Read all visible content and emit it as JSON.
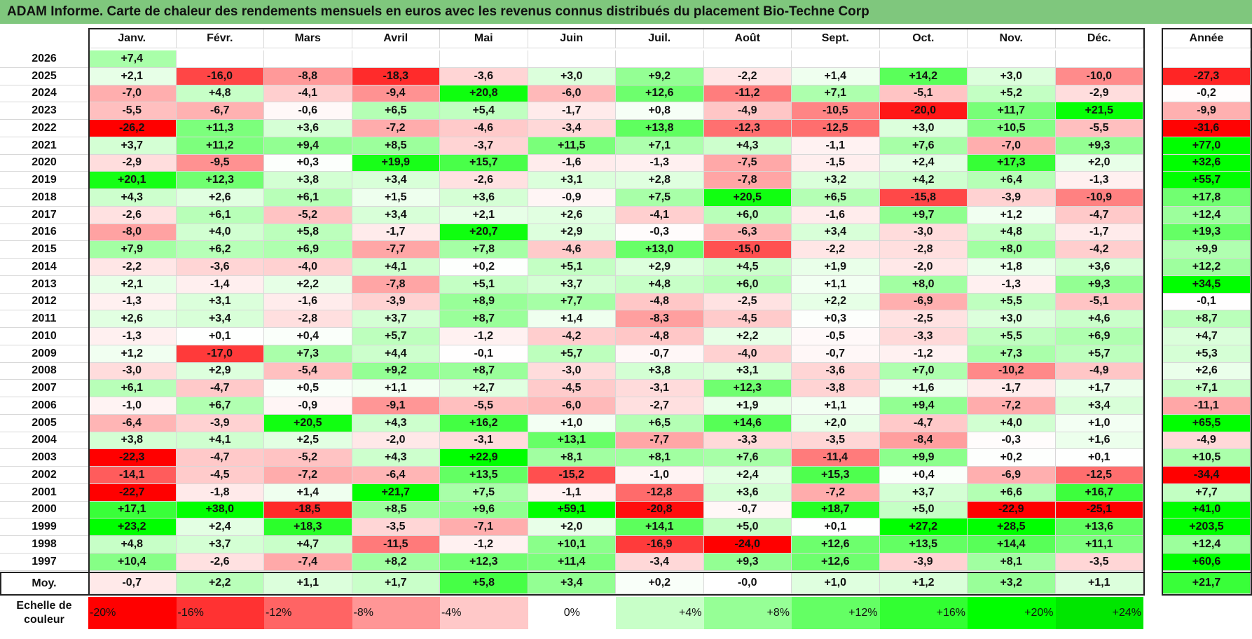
{
  "title": "ADAM Informe. Carte de chaleur des rendements mensuels en euros avec les revenus connus distribués du placement Bio-Techne Corp",
  "chart_data": {
    "type": "heatmap",
    "months": [
      "Janv.",
      "Févr.",
      "Mars",
      "Avril",
      "Mai",
      "Juin",
      "Juil.",
      "Août",
      "Sept.",
      "Oct.",
      "Nov.",
      "Déc."
    ],
    "annual_label": "Année",
    "rows": [
      {
        "year": "2026",
        "values": [
          "+7,4",
          "",
          "",
          "",
          "",
          "",
          "",
          "",
          "",
          "",
          "",
          ""
        ],
        "annual": ""
      },
      {
        "year": "2025",
        "values": [
          "+2,1",
          "-16,0",
          "-8,8",
          "-18,3",
          "-3,6",
          "+3,0",
          "+9,2",
          "-2,2",
          "+1,4",
          "+14,2",
          "+3,0",
          "-10,0"
        ],
        "annual": "-27,3"
      },
      {
        "year": "2024",
        "values": [
          "-7,0",
          "+4,8",
          "-4,1",
          "-9,4",
          "+20,8",
          "-6,0",
          "+12,6",
          "-11,2",
          "+7,1",
          "-5,1",
          "+5,2",
          "-2,9"
        ],
        "annual": "-0,2"
      },
      {
        "year": "2023",
        "values": [
          "-5,5",
          "-6,7",
          "-0,6",
          "+6,5",
          "+5,4",
          "-1,7",
          "+0,8",
          "-4,9",
          "-10,5",
          "-20,0",
          "+11,7",
          "+21,5"
        ],
        "annual": "-9,9"
      },
      {
        "year": "2022",
        "values": [
          "-26,2",
          "+11,3",
          "+3,6",
          "-7,2",
          "-4,6",
          "-3,4",
          "+13,8",
          "-12,3",
          "-12,5",
          "+3,0",
          "+10,5",
          "-5,5"
        ],
        "annual": "-31,6"
      },
      {
        "year": "2021",
        "values": [
          "+3,7",
          "+11,2",
          "+9,4",
          "+8,5",
          "-3,7",
          "+11,5",
          "+7,1",
          "+4,3",
          "-1,1",
          "+7,6",
          "-7,0",
          "+9,3"
        ],
        "annual": "+77,0"
      },
      {
        "year": "2020",
        "values": [
          "-2,9",
          "-9,5",
          "+0,3",
          "+19,9",
          "+15,7",
          "-1,6",
          "-1,3",
          "-7,5",
          "-1,5",
          "+2,4",
          "+17,3",
          "+2,0"
        ],
        "annual": "+32,6"
      },
      {
        "year": "2019",
        "values": [
          "+20,1",
          "+12,3",
          "+3,8",
          "+3,4",
          "-2,6",
          "+3,1",
          "+2,8",
          "-7,8",
          "+3,2",
          "+4,2",
          "+6,4",
          "-1,3"
        ],
        "annual": "+55,7"
      },
      {
        "year": "2018",
        "values": [
          "+4,3",
          "+2,6",
          "+6,1",
          "+1,5",
          "+3,6",
          "-0,9",
          "+7,5",
          "+20,5",
          "+6,5",
          "-15,8",
          "-3,9",
          "-10,9"
        ],
        "annual": "+17,8"
      },
      {
        "year": "2017",
        "values": [
          "-2,6",
          "+6,1",
          "-5,2",
          "+3,4",
          "+2,1",
          "+2,6",
          "-4,1",
          "+6,0",
          "-1,6",
          "+9,7",
          "+1,2",
          "-4,7"
        ],
        "annual": "+12,4"
      },
      {
        "year": "2016",
        "values": [
          "-8,0",
          "+4,0",
          "+5,8",
          "-1,7",
          "+20,7",
          "+2,9",
          "-0,3",
          "-6,3",
          "+3,4",
          "-3,0",
          "+4,8",
          "-1,7"
        ],
        "annual": "+19,3"
      },
      {
        "year": "2015",
        "values": [
          "+7,9",
          "+6,2",
          "+6,9",
          "-7,7",
          "+7,8",
          "-4,6",
          "+13,0",
          "-15,0",
          "-2,2",
          "-2,8",
          "+8,0",
          "-4,2"
        ],
        "annual": "+9,9"
      },
      {
        "year": "2014",
        "values": [
          "-2,2",
          "-3,6",
          "-4,0",
          "+4,1",
          "+0,2",
          "+5,1",
          "+2,9",
          "+4,5",
          "+1,9",
          "-2,0",
          "+1,8",
          "+3,6"
        ],
        "annual": "+12,2"
      },
      {
        "year": "2013",
        "values": [
          "+2,1",
          "-1,4",
          "+2,2",
          "-7,8",
          "+5,1",
          "+3,7",
          "+4,8",
          "+6,0",
          "+1,1",
          "+8,0",
          "-1,3",
          "+9,3"
        ],
        "annual": "+34,5"
      },
      {
        "year": "2012",
        "values": [
          "-1,3",
          "+3,1",
          "-1,6",
          "-3,9",
          "+8,9",
          "+7,7",
          "-4,8",
          "-2,5",
          "+2,2",
          "-6,9",
          "+5,5",
          "-5,1"
        ],
        "annual": "-0,1"
      },
      {
        "year": "2011",
        "values": [
          "+2,6",
          "+3,4",
          "-2,8",
          "+3,7",
          "+8,7",
          "+1,4",
          "-8,3",
          "-4,5",
          "+0,3",
          "-2,5",
          "+3,0",
          "+4,6"
        ],
        "annual": "+8,7"
      },
      {
        "year": "2010",
        "values": [
          "-1,3",
          "+0,1",
          "+0,4",
          "+5,7",
          "-1,2",
          "-4,2",
          "-4,8",
          "+2,2",
          "-0,5",
          "-3,3",
          "+5,5",
          "+6,9"
        ],
        "annual": "+4,7"
      },
      {
        "year": "2009",
        "values": [
          "+1,2",
          "-17,0",
          "+7,3",
          "+4,4",
          "-0,1",
          "+5,7",
          "-0,7",
          "-4,0",
          "-0,7",
          "-1,2",
          "+7,3",
          "+5,7"
        ],
        "annual": "+5,3"
      },
      {
        "year": "2008",
        "values": [
          "-3,0",
          "+2,9",
          "-5,4",
          "+9,2",
          "+8,7",
          "-3,0",
          "+3,8",
          "+3,1",
          "-3,6",
          "+7,0",
          "-10,2",
          "-4,9"
        ],
        "annual": "+2,6"
      },
      {
        "year": "2007",
        "values": [
          "+6,1",
          "-4,7",
          "+0,5",
          "+1,1",
          "+2,7",
          "-4,5",
          "-3,1",
          "+12,3",
          "-3,8",
          "+1,6",
          "-1,7",
          "+1,7"
        ],
        "annual": "+7,1"
      },
      {
        "year": "2006",
        "values": [
          "-1,0",
          "+6,7",
          "-0,9",
          "-9,1",
          "-5,5",
          "-6,0",
          "-2,7",
          "+1,9",
          "+1,1",
          "+9,4",
          "-7,2",
          "+3,4"
        ],
        "annual": "-11,1"
      },
      {
        "year": "2005",
        "values": [
          "-6,4",
          "-3,9",
          "+20,5",
          "+4,3",
          "+16,2",
          "+1,0",
          "+6,5",
          "+14,6",
          "+2,0",
          "-4,7",
          "+4,0",
          "+1,0"
        ],
        "annual": "+65,5"
      },
      {
        "year": "2004",
        "values": [
          "+3,8",
          "+4,1",
          "+2,5",
          "-2,0",
          "-3,1",
          "+13,1",
          "-7,7",
          "-3,3",
          "-3,5",
          "-8,4",
          "-0,3",
          "+1,6"
        ],
        "annual": "-4,9"
      },
      {
        "year": "2003",
        "values": [
          "-22,3",
          "-4,7",
          "-5,2",
          "+4,3",
          "+22,9",
          "+8,1",
          "+8,1",
          "+7,6",
          "-11,4",
          "+9,9",
          "+0,2",
          "+0,1"
        ],
        "annual": "+10,5"
      },
      {
        "year": "2002",
        "values": [
          "-14,1",
          "-4,5",
          "-7,2",
          "-6,4",
          "+13,5",
          "-15,2",
          "-1,0",
          "+2,4",
          "+15,3",
          "+0,4",
          "-6,9",
          "-12,5"
        ],
        "annual": "-34,4"
      },
      {
        "year": "2001",
        "values": [
          "-22,7",
          "-1,8",
          "+1,4",
          "+21,7",
          "+7,5",
          "-1,1",
          "-12,8",
          "+3,6",
          "-7,2",
          "+3,7",
          "+6,6",
          "+16,7"
        ],
        "annual": "+7,7"
      },
      {
        "year": "2000",
        "values": [
          "+17,1",
          "+38,0",
          "-18,5",
          "+8,5",
          "+9,6",
          "+59,1",
          "-20,8",
          "-0,7",
          "+18,7",
          "+5,0",
          "-22,9",
          "-25,1"
        ],
        "annual": "+41,0"
      },
      {
        "year": "1999",
        "values": [
          "+23,2",
          "+2,4",
          "+18,3",
          "-3,5",
          "-7,1",
          "+2,0",
          "+14,1",
          "+5,0",
          "+0,1",
          "+27,2",
          "+28,5",
          "+13,6"
        ],
        "annual": "+203,5"
      },
      {
        "year": "1998",
        "values": [
          "+4,8",
          "+3,7",
          "+4,7",
          "-11,5",
          "-1,2",
          "+10,1",
          "-16,9",
          "-24,0",
          "+12,6",
          "+13,5",
          "+14,4",
          "+11,1"
        ],
        "annual": "+12,4"
      },
      {
        "year": "1997",
        "values": [
          "+10,4",
          "-2,6",
          "-7,4",
          "+8,2",
          "+12,3",
          "+11,4",
          "-3,4",
          "+9,3",
          "+12,6",
          "-3,9",
          "+8,1",
          "-3,5"
        ],
        "annual": "+60,6"
      }
    ],
    "average": {
      "label": "Moy.",
      "values": [
        "-0,7",
        "+2,2",
        "+1,1",
        "+1,7",
        "+5,8",
        "+3,4",
        "+0,2",
        "-0,0",
        "+1,0",
        "+1,2",
        "+3,2",
        "+1,1"
      ],
      "annual": "+21,7"
    },
    "scale": {
      "label": "Echelle de couleur",
      "items": [
        "-20%",
        "-16%",
        "-12%",
        "-8%",
        "-4%",
        "0%",
        "+4%",
        "+8%",
        "+12%",
        "+16%",
        "+20%",
        "+24%"
      ],
      "colors": [
        "#ff0000",
        "#ff3232",
        "#ff6464",
        "#ff9696",
        "#ffc8c8",
        "#ffffff",
        "#c8ffc8",
        "#96ff96",
        "#64ff64",
        "#32ff32",
        "#00ff00",
        "#00e600"
      ]
    },
    "colors": {
      "negative_max": "#ff0000",
      "positive_max": "#00ff00",
      "neutral": "#ffffff",
      "title_bar": "#7fc77d"
    }
  }
}
